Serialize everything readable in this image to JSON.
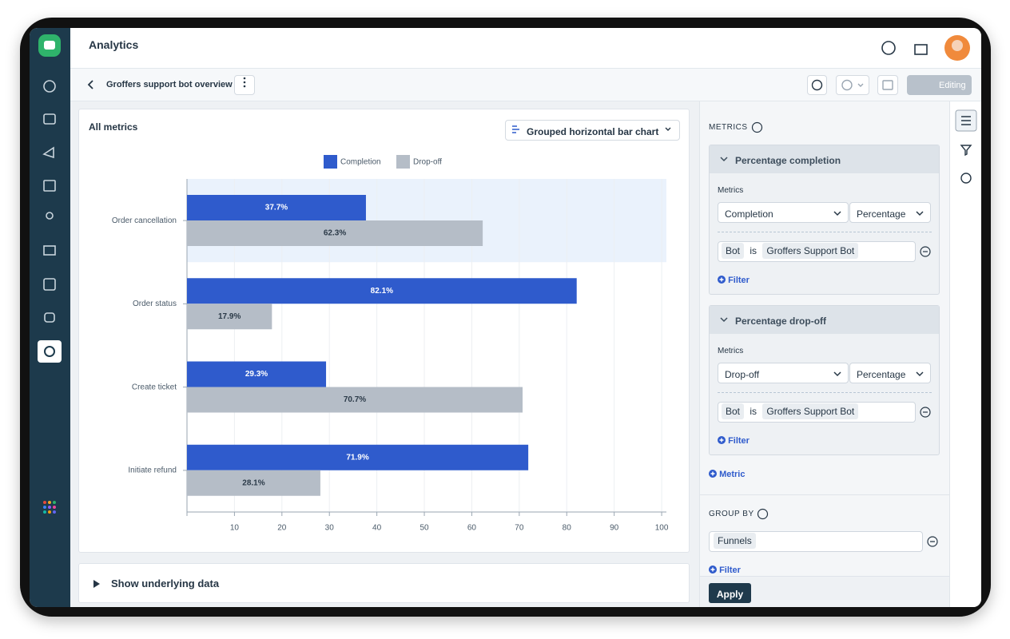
{
  "header": {
    "title": "Analytics"
  },
  "toolbar": {
    "breadcrumb": "Groffers support bot overview",
    "editing": "Editing"
  },
  "card": {
    "chart_type": "Grouped horizontal bar chart"
  },
  "chart_data": {
    "type": "hbar",
    "title": "All metrics",
    "categories": [
      "Order cancellation",
      "Order status",
      "Create ticket",
      "Initiate refund"
    ],
    "series": [
      {
        "name": "Completion",
        "color": "#2f5bcc",
        "values": [
          37.7,
          82.1,
          29.3,
          71.9
        ],
        "value_labels": [
          "37.7%",
          "82.1%",
          "29.3%",
          "71.9%"
        ]
      },
      {
        "name": "Drop-off",
        "color": "#b5bdc7",
        "values": [
          62.3,
          17.9,
          70.7,
          28.1
        ],
        "value_labels": [
          "62.3%",
          "17.9%",
          "70.7%",
          "28.1%"
        ]
      }
    ],
    "xlim": [
      0,
      101
    ],
    "xticks": [
      10,
      20,
      30,
      40,
      50,
      60,
      70,
      80,
      90,
      100
    ],
    "grid": true,
    "legend": "top"
  },
  "underlying": "Show underlying data",
  "panel": {
    "metrics_heading": "METRICS",
    "metrics": [
      {
        "title": "Percentage completion",
        "label": "Metrics",
        "metric": "Completion",
        "aggregation": "Percentage",
        "filter": {
          "field": "Bot",
          "op": "is",
          "value": "Groffers Support Bot"
        },
        "add_filter": "Filter"
      },
      {
        "title": "Percentage drop-off",
        "label": "Metrics",
        "metric": "Drop-off",
        "aggregation": "Percentage",
        "filter": {
          "field": "Bot",
          "op": "is",
          "value": "Groffers Support Bot"
        },
        "add_filter": "Filter"
      }
    ],
    "add_metric": "Metric",
    "group_by_heading": "GROUP BY",
    "group_by": "Funnels",
    "add_filter": "Filter",
    "apply": "Apply"
  }
}
